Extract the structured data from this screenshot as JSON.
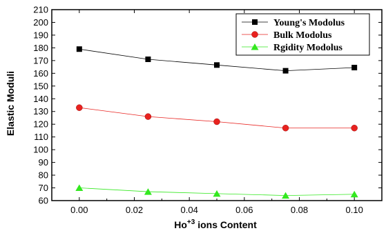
{
  "chart_data": {
    "type": "line",
    "xlabel": "Ho",
    "xlabel_superscript": "+3",
    "xlabel_suffix": " ions Content",
    "ylabel": "Elastic Moduli",
    "xlim": [
      -0.01,
      0.11
    ],
    "ylim": [
      60,
      210
    ],
    "xticks": [
      "0.00",
      "0.02",
      "0.04",
      "0.06",
      "0.08",
      "0.10"
    ],
    "yticks": [
      "60",
      "70",
      "80",
      "90",
      "100",
      "110",
      "120",
      "130",
      "140",
      "150",
      "160",
      "170",
      "180",
      "190",
      "200",
      "210"
    ],
    "legend_position": "top-right",
    "series": [
      {
        "name": "Young's Modolus",
        "marker": "square",
        "color": "#000000",
        "x": [
          0.0,
          0.025,
          0.05,
          0.075,
          0.1
        ],
        "y": [
          179,
          171,
          166.5,
          162,
          164.5
        ]
      },
      {
        "name": "Bulk Modolus",
        "marker": "circle",
        "color": "#e8221f",
        "x": [
          0.0,
          0.025,
          0.05,
          0.075,
          0.1
        ],
        "y": [
          133,
          126,
          122,
          117,
          117
        ]
      },
      {
        "name": "Rgidity Modolus",
        "marker": "triangle",
        "color": "#33e81f",
        "x": [
          0.0,
          0.025,
          0.05,
          0.075,
          0.1
        ],
        "y": [
          70,
          67,
          65.5,
          64,
          65
        ]
      }
    ]
  }
}
